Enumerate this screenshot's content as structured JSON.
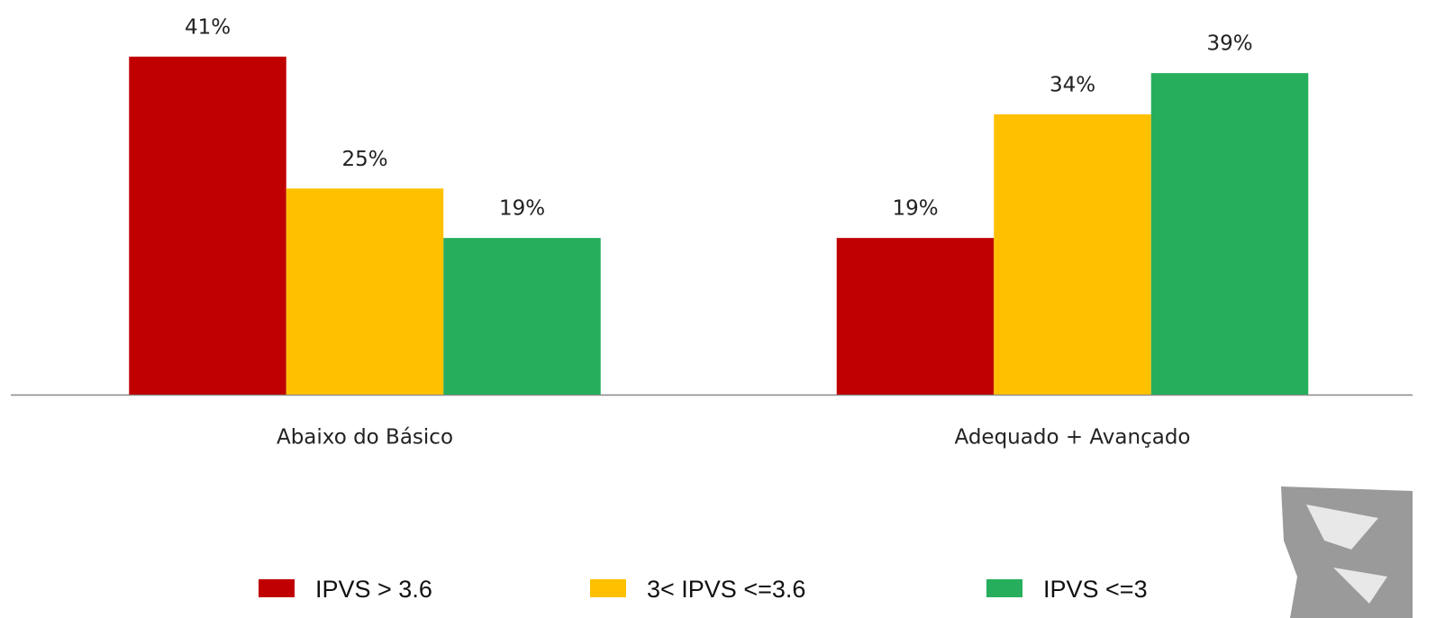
{
  "chart_data": {
    "type": "bar",
    "categories": [
      "Abaixo do Básico",
      "Adequado + Avançado"
    ],
    "series": [
      {
        "name": "IPVS > 3.6",
        "color": "#c00000",
        "values": [
          41,
          19
        ],
        "value_labels": [
          "41%",
          "19%"
        ]
      },
      {
        "name": "3< IPVS <=3.6",
        "color": "#ffc000",
        "values": [
          25,
          34
        ],
        "value_labels": [
          "25%",
          "34%"
        ]
      },
      {
        "name": "IPVS <=3",
        "color": "#27ae5c",
        "values": [
          19,
          39
        ],
        "value_labels": [
          "19%",
          "39%"
        ]
      }
    ],
    "legend": "bottom"
  }
}
